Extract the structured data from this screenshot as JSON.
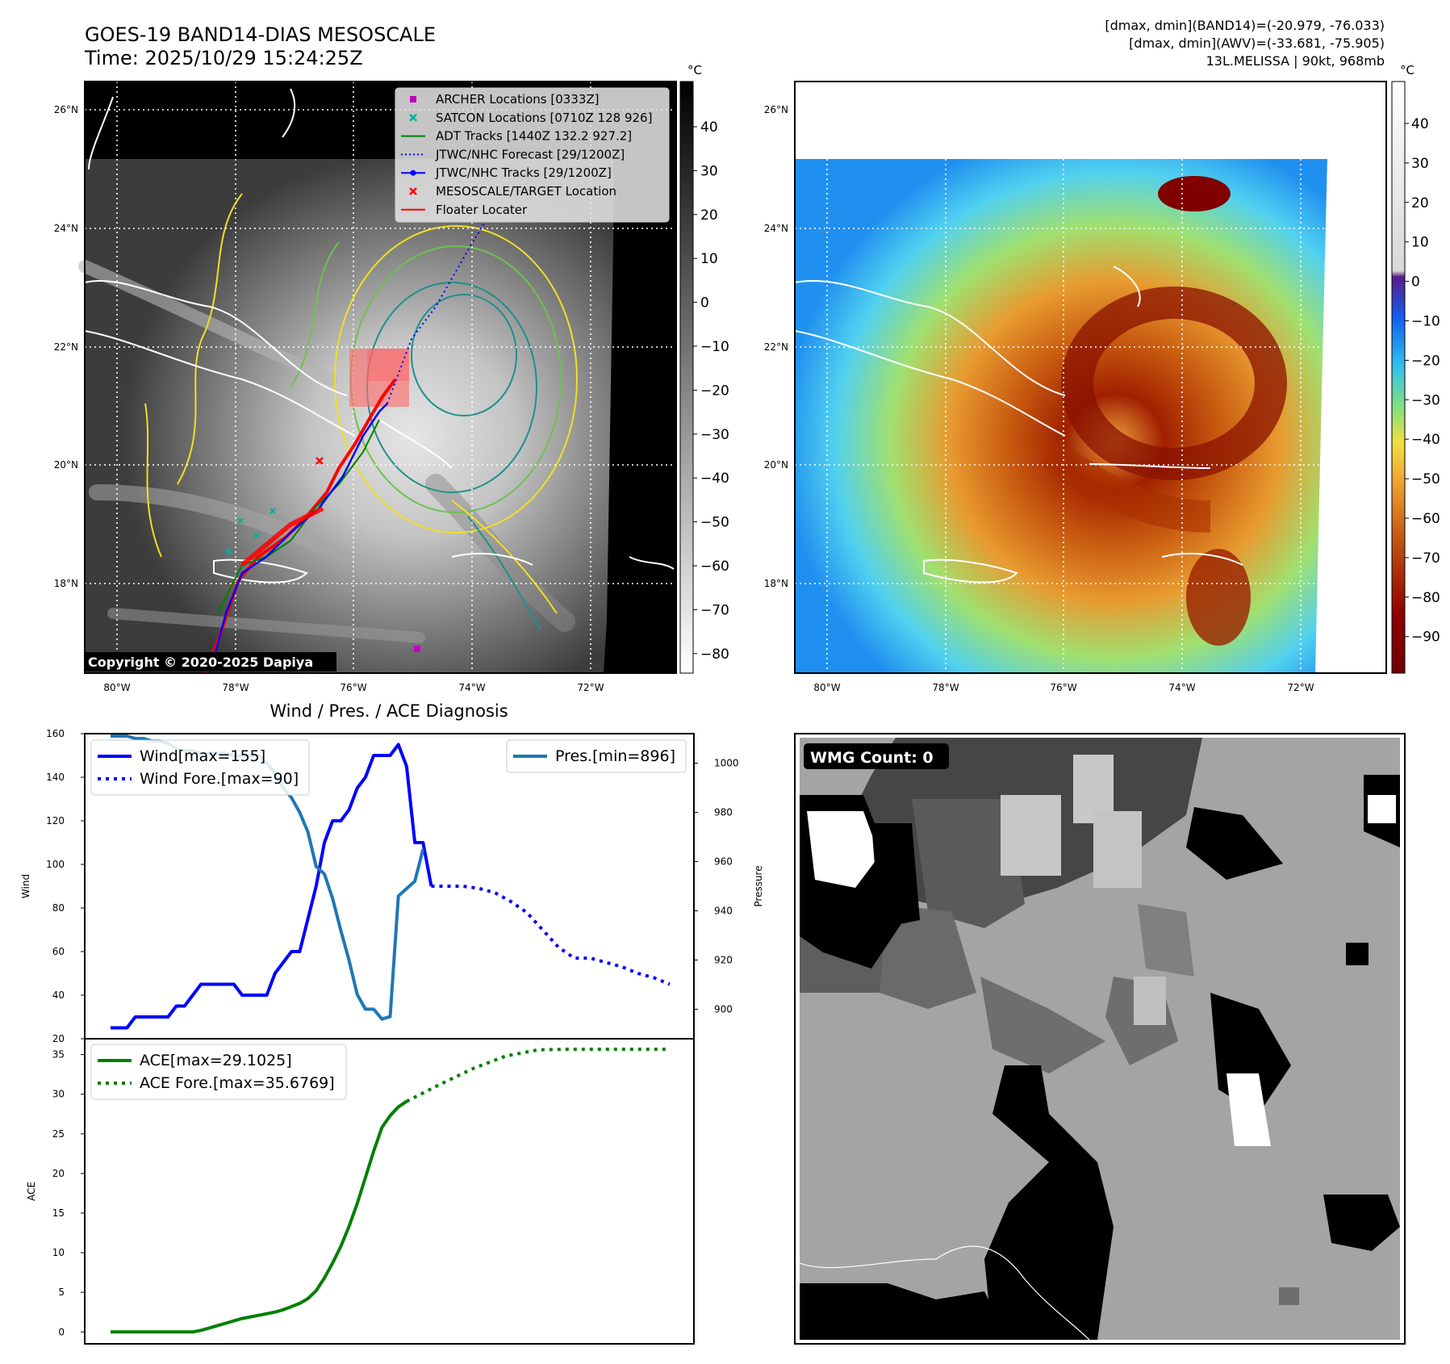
{
  "header": {
    "title_line1": "GOES-19 BAND14-DIAS MESOSCALE",
    "title_line2": "Time: 2025/10/29 15:24:25Z",
    "info_line1": "[dmax, dmin](BAND14)=(-20.979, -76.033)",
    "info_line2": "[dmax, dmin](AWV)=(-33.681, -75.905)",
    "info_line3": "13L.MELISSA | 90kt, 968mb"
  },
  "map_axes": {
    "lat_labels": [
      "26°N",
      "24°N",
      "22°N",
      "20°N",
      "18°N"
    ],
    "lon_labels": [
      "80°W",
      "78°W",
      "76°W",
      "74°W",
      "72°W"
    ]
  },
  "colorbar_gray": {
    "unit": "°C",
    "ticks": [
      "40",
      "30",
      "20",
      "10",
      "0",
      "−10",
      "−20",
      "−30",
      "−40",
      "−50",
      "−60",
      "−70",
      "−80"
    ]
  },
  "colorbar_color": {
    "unit": "°C",
    "ticks": [
      "40",
      "30",
      "20",
      "10",
      "0",
      "−10",
      "−20",
      "−30",
      "−40",
      "−50",
      "−60",
      "−70",
      "−80",
      "−90"
    ]
  },
  "legend": {
    "items": [
      {
        "label": "ARCHER Locations [0333Z]",
        "color": "#c000c0",
        "marker": "square"
      },
      {
        "label": "SATCON Locations [0710Z 128 926]",
        "color": "#00b0a0",
        "marker": "x"
      },
      {
        "label": "ADT Tracks [1440Z 132.2 927.2]",
        "color": "#008000",
        "marker": "line"
      },
      {
        "label": "JTWC/NHC Forecast [29/1200Z]",
        "color": "#0000ff",
        "marker": "dotted"
      },
      {
        "label": "JTWC/NHC Tracks [29/1200Z]",
        "color": "#0000ff",
        "marker": "line-dot"
      },
      {
        "label": "MESOSCALE/TARGET Location",
        "color": "#ff0000",
        "marker": "x"
      },
      {
        "label": "Floater Locater",
        "color": "#ff0000",
        "marker": "line"
      }
    ]
  },
  "copyright": "Copyright © 2020-2025 Dapiya",
  "wmg": {
    "label": "WMG Count: 0"
  },
  "chart_data": [
    {
      "type": "line",
      "title": "Wind / Pres. / ACE Diagnosis",
      "ylabel": "Wind",
      "y2label": "Pressure",
      "ylim": [
        20,
        160
      ],
      "y2lim": [
        888,
        1012
      ],
      "yticks": [
        "20",
        "40",
        "60",
        "80",
        "100",
        "120",
        "140",
        "160"
      ],
      "y2ticks": [
        "900",
        "920",
        "940",
        "960",
        "980",
        "1000"
      ],
      "series": [
        {
          "name": "Wind[max=155]",
          "color": "#0000ff",
          "style": "solid",
          "axis": "left",
          "values": [
            25,
            25,
            25,
            30,
            30,
            30,
            30,
            30,
            35,
            35,
            40,
            45,
            45,
            45,
            45,
            45,
            40,
            40,
            40,
            40,
            50,
            55,
            60,
            60,
            75,
            90,
            110,
            120,
            120,
            125,
            135,
            140,
            150,
            150,
            150,
            155,
            145,
            110,
            110,
            90
          ]
        },
        {
          "name": "Wind Fore.[max=90]",
          "color": "#0000ff",
          "style": "dotted",
          "axis": "left",
          "start": 39,
          "end": 68,
          "values": [
            90,
            90,
            90,
            89,
            87,
            83,
            78,
            70,
            62,
            57,
            57,
            55,
            53,
            50,
            48,
            45
          ]
        },
        {
          "name": "Pres.[min=896]",
          "color": "#1f77b4",
          "style": "solid",
          "axis": "right",
          "values": [
            1011,
            1011,
            1011,
            1010,
            1010,
            1009,
            1009,
            1008,
            1006,
            1005,
            1005,
            1004,
            1004,
            1004,
            1004,
            1003,
            1003,
            1003,
            1003,
            1000,
            996,
            990,
            986,
            980,
            972,
            958,
            955,
            945,
            932,
            920,
            906,
            900,
            900,
            896,
            897,
            946,
            949,
            952,
            965
          ]
        }
      ]
    },
    {
      "type": "line",
      "ylabel": "ACE",
      "ylim": [
        -1.5,
        37
      ],
      "yticks": [
        "0",
        "5",
        "10",
        "15",
        "20",
        "25",
        "30",
        "35"
      ],
      "series": [
        {
          "name": "ACE[max=29.1025]",
          "color": "#008000",
          "style": "solid",
          "values": [
            0,
            0,
            0,
            0,
            0,
            0,
            0,
            0,
            0,
            0,
            0,
            0.2,
            0.5,
            0.8,
            1.1,
            1.4,
            1.7,
            1.9,
            2.1,
            2.3,
            2.5,
            2.8,
            3.2,
            3.6,
            4.2,
            5.2,
            6.8,
            8.7,
            10.8,
            13.3,
            16.2,
            19.5,
            22.8,
            25.8,
            27.3,
            28.4,
            29.1
          ]
        },
        {
          "name": "ACE Fore.[max=35.6769]",
          "color": "#008000",
          "style": "dotted",
          "start": 36,
          "end": 68,
          "values": [
            29.1,
            31.2,
            33.2,
            34.8,
            35.6,
            35.6769,
            35.6769,
            35.6769,
            35.6769
          ]
        }
      ]
    }
  ]
}
